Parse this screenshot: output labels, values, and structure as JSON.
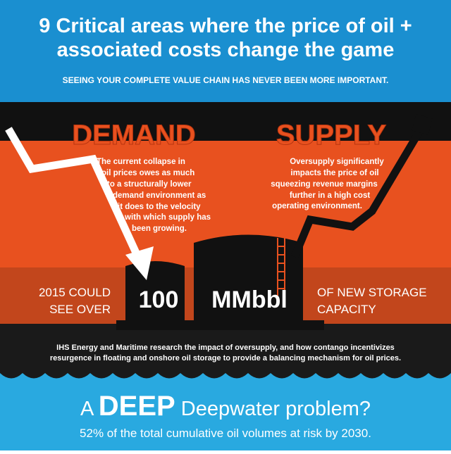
{
  "header": {
    "title_lines": [
      "9 Critical areas where the price of oil +",
      "associated costs change the game"
    ],
    "subtitle": "SEEING YOUR COMPLETE VALUE CHAIN HAS NEVER BEEN MORE IMPORTANT."
  },
  "demand": {
    "heading": "DEMAND",
    "lines": [
      "The current collapse in",
      "oil prices owes as much",
      "to a structurally lower",
      "demand environment as",
      "it does to the velocity",
      "with which supply has",
      "been growing."
    ]
  },
  "supply": {
    "heading": "SUPPLY",
    "lines": [
      "Oversupply significantly",
      "impacts the price of oil",
      "squeezing revenue margins",
      "further in a high cost",
      "operating environment."
    ]
  },
  "storage": {
    "left_lines": [
      "2015 COULD",
      "SEE OVER"
    ],
    "number": "100",
    "unit": "MMbbl",
    "right_lines": [
      "OF NEW STORAGE",
      "CAPACITY"
    ]
  },
  "research": {
    "lines": [
      "IHS Energy and Maritime research the impact of oversupply, and how contango incentivizes",
      "resurgence in floating and onshore oil storage to provide a balancing mechanism for oil prices."
    ]
  },
  "deepwater": {
    "prefix": "A",
    "emphasis": "DEEP",
    "rest": "Deepwater problem?",
    "subtitle": "52% of the total cumulative oil volumes at risk by 2030."
  }
}
